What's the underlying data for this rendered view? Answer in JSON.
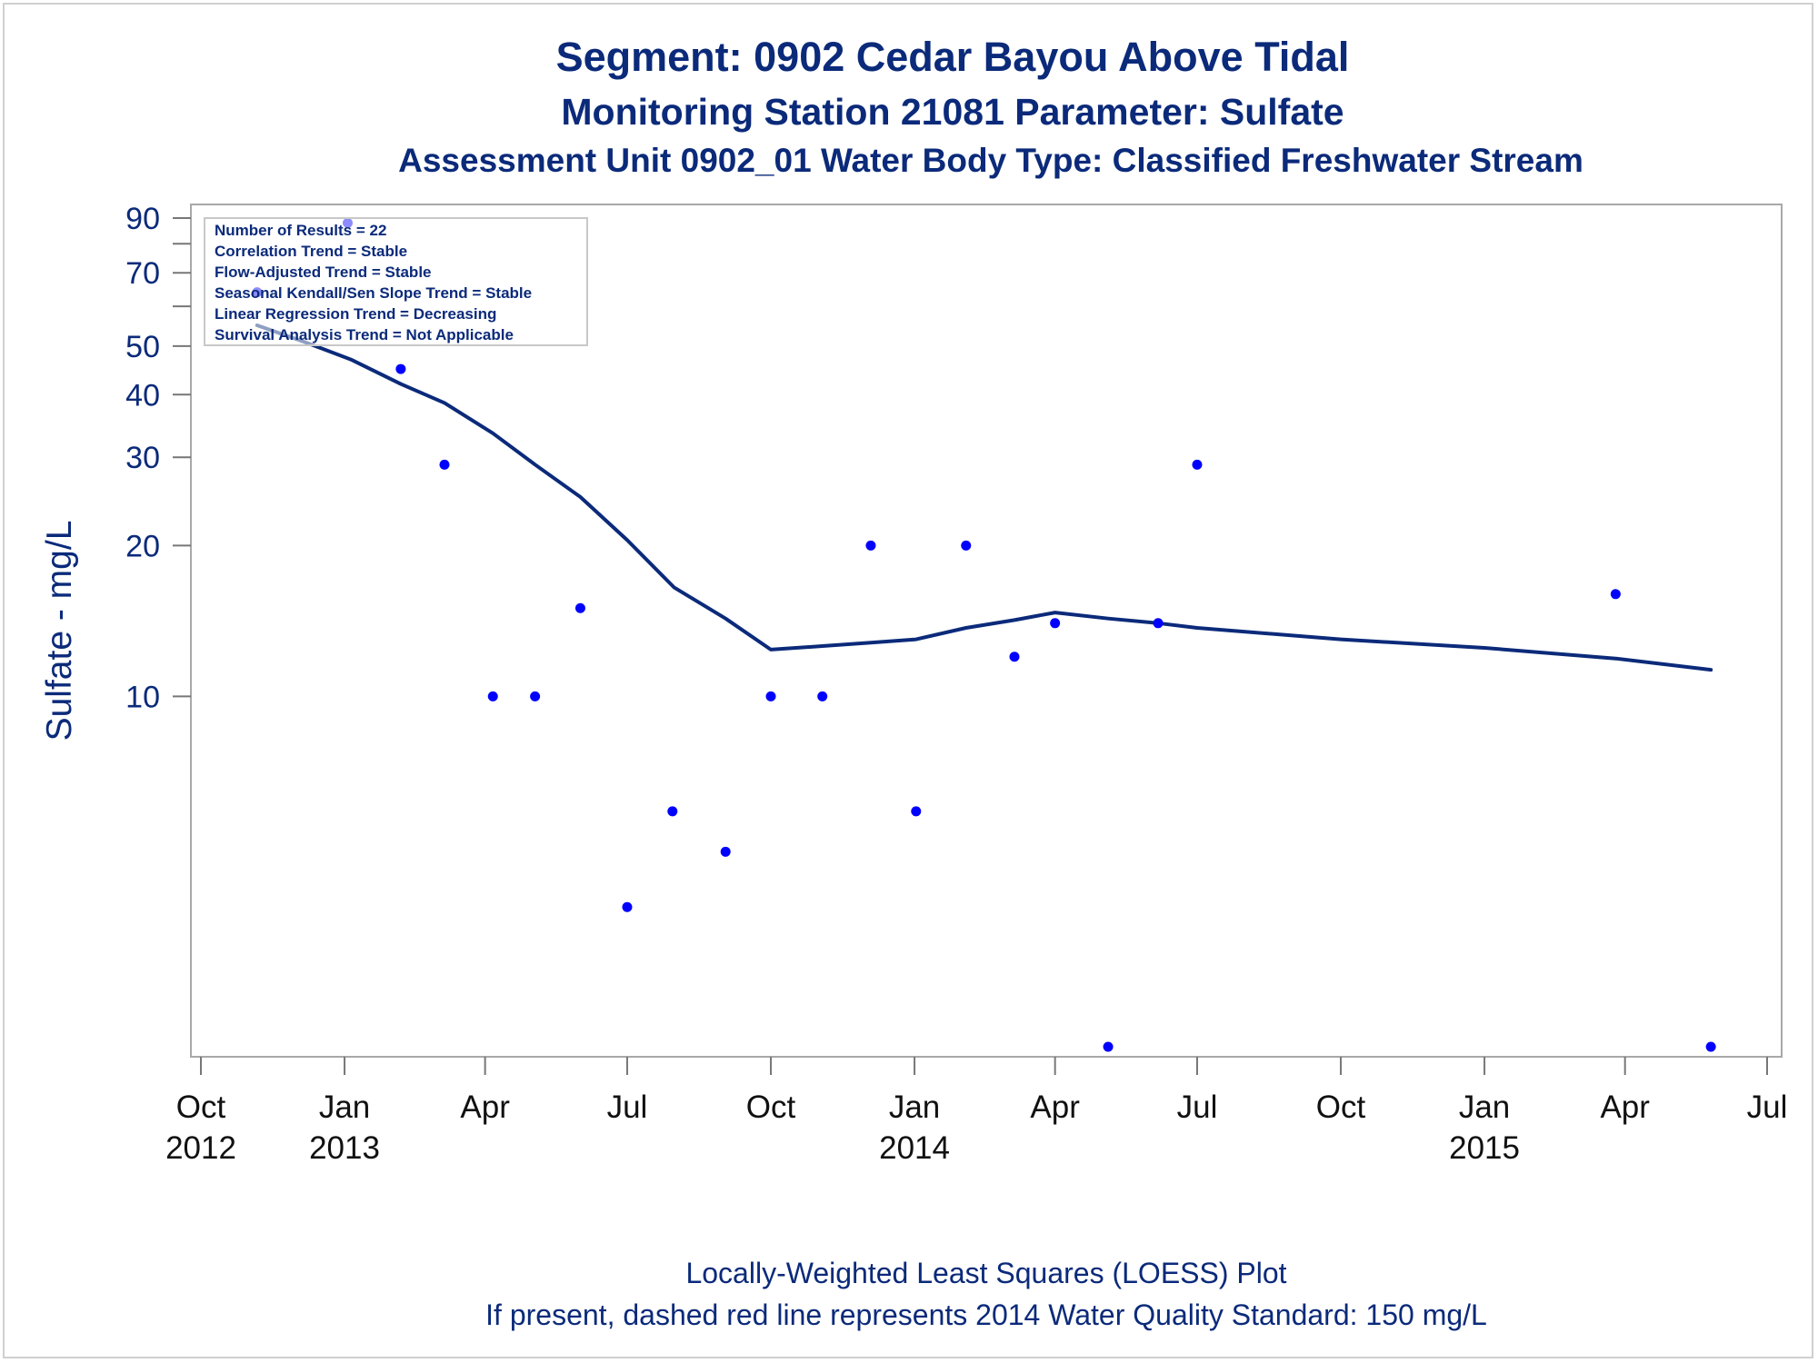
{
  "titles": {
    "line1": "Segment: 0902  Cedar Bayou Above Tidal",
    "line2": "Monitoring Station 21081 Parameter: Sulfate",
    "line3": "Assessment Unit 0902_01   Water Body Type: Classified Freshwater Stream"
  },
  "inset_lines": [
    "Number of Results = 22",
    "Correlation Trend = Stable",
    "Flow-Adjusted Trend = Stable",
    "Seasonal Kendall/Sen Slope Trend = Stable",
    "Linear Regression Trend = Decreasing",
    "Survival Analysis Trend = Not Applicable"
  ],
  "footer": {
    "line1": "Locally-Weighted Least Squares (LOESS) Plot",
    "line2": "If present, dashed red line represents 2014 Water Quality Standard: 150   mg/L"
  },
  "chart_data": {
    "type": "scatter",
    "title": "Segment: 0902  Cedar Bayou Above Tidal",
    "ylabel": "Sulfate - mg/L",
    "xlabel": "",
    "y_scale": "log",
    "ylim": [
      2,
      90
    ],
    "xlim": [
      "2012-10-01",
      "2015-07-01"
    ],
    "y_ticks": [
      {
        "value": 10,
        "label": "10"
      },
      {
        "value": 20,
        "label": "20"
      },
      {
        "value": 30,
        "label": "30"
      },
      {
        "value": 40,
        "label": "40"
      },
      {
        "value": 50,
        "label": "50"
      },
      {
        "value": 60,
        "label": ""
      },
      {
        "value": 70,
        "label": "70"
      },
      {
        "value": 80,
        "label": ""
      },
      {
        "value": 90,
        "label": "90"
      }
    ],
    "x_ticks": [
      {
        "date": "2012-10-01",
        "label": "Oct",
        "year": "2012"
      },
      {
        "date": "2013-01-01",
        "label": "Jan",
        "year": "2013"
      },
      {
        "date": "2013-04-01",
        "label": "Apr",
        "year": ""
      },
      {
        "date": "2013-07-01",
        "label": "Jul",
        "year": ""
      },
      {
        "date": "2013-10-01",
        "label": "Oct",
        "year": ""
      },
      {
        "date": "2014-01-01",
        "label": "Jan",
        "year": "2014"
      },
      {
        "date": "2014-04-01",
        "label": "Apr",
        "year": ""
      },
      {
        "date": "2014-07-01",
        "label": "Jul",
        "year": ""
      },
      {
        "date": "2014-10-01",
        "label": "Oct",
        "year": ""
      },
      {
        "date": "2015-01-01",
        "label": "Jan",
        "year": "2015"
      },
      {
        "date": "2015-04-01",
        "label": "Apr",
        "year": ""
      },
      {
        "date": "2015-07-01",
        "label": "Jul",
        "year": ""
      }
    ],
    "series": [
      {
        "kind": "points",
        "color": "#0000ff",
        "points": [
          {
            "x": "2012-11-06",
            "y": 64
          },
          {
            "x": "2013-01-03",
            "y": 88
          },
          {
            "x": "2013-02-06",
            "y": 45
          },
          {
            "x": "2013-03-06",
            "y": 29
          },
          {
            "x": "2013-04-06",
            "y": 10
          },
          {
            "x": "2013-05-03",
            "y": 10
          },
          {
            "x": "2013-06-01",
            "y": 15
          },
          {
            "x": "2013-07-01",
            "y": 3.8
          },
          {
            "x": "2013-07-30",
            "y": 5.9
          },
          {
            "x": "2013-09-02",
            "y": 4.9
          },
          {
            "x": "2013-10-01",
            "y": 10
          },
          {
            "x": "2013-11-03",
            "y": 10
          },
          {
            "x": "2013-12-04",
            "y": 20
          },
          {
            "x": "2014-01-02",
            "y": 5.9
          },
          {
            "x": "2014-02-03",
            "y": 20
          },
          {
            "x": "2014-03-06",
            "y": 12
          },
          {
            "x": "2014-04-01",
            "y": 14
          },
          {
            "x": "2014-05-05",
            "y": 2
          },
          {
            "x": "2014-06-06",
            "y": 14
          },
          {
            "x": "2014-07-01",
            "y": 29
          },
          {
            "x": "2015-03-26",
            "y": 16
          },
          {
            "x": "2015-05-26",
            "y": 2
          }
        ]
      },
      {
        "kind": "line",
        "name": "LOESS",
        "color": "#0b2a7a",
        "points": [
          {
            "x": "2012-11-06",
            "y": 55
          },
          {
            "x": "2012-12-06",
            "y": 51
          },
          {
            "x": "2013-01-05",
            "y": 47
          },
          {
            "x": "2013-02-06",
            "y": 42
          },
          {
            "x": "2013-03-06",
            "y": 38.5
          },
          {
            "x": "2013-04-06",
            "y": 33.5
          },
          {
            "x": "2013-05-03",
            "y": 29
          },
          {
            "x": "2013-06-01",
            "y": 25
          },
          {
            "x": "2013-07-01",
            "y": 20.5
          },
          {
            "x": "2013-07-31",
            "y": 16.5
          },
          {
            "x": "2013-09-02",
            "y": 14.3
          },
          {
            "x": "2013-10-01",
            "y": 12.4
          },
          {
            "x": "2013-11-03",
            "y": 12.6
          },
          {
            "x": "2013-12-04",
            "y": 12.8
          },
          {
            "x": "2014-01-02",
            "y": 13
          },
          {
            "x": "2014-02-03",
            "y": 13.7
          },
          {
            "x": "2014-03-06",
            "y": 14.2
          },
          {
            "x": "2014-04-01",
            "y": 14.7
          },
          {
            "x": "2014-05-05",
            "y": 14.3
          },
          {
            "x": "2014-06-06",
            "y": 14
          },
          {
            "x": "2014-07-01",
            "y": 13.7
          },
          {
            "x": "2014-10-01",
            "y": 13
          },
          {
            "x": "2015-01-01",
            "y": 12.5
          },
          {
            "x": "2015-03-26",
            "y": 11.9
          },
          {
            "x": "2015-05-26",
            "y": 11.3
          }
        ]
      }
    ]
  }
}
